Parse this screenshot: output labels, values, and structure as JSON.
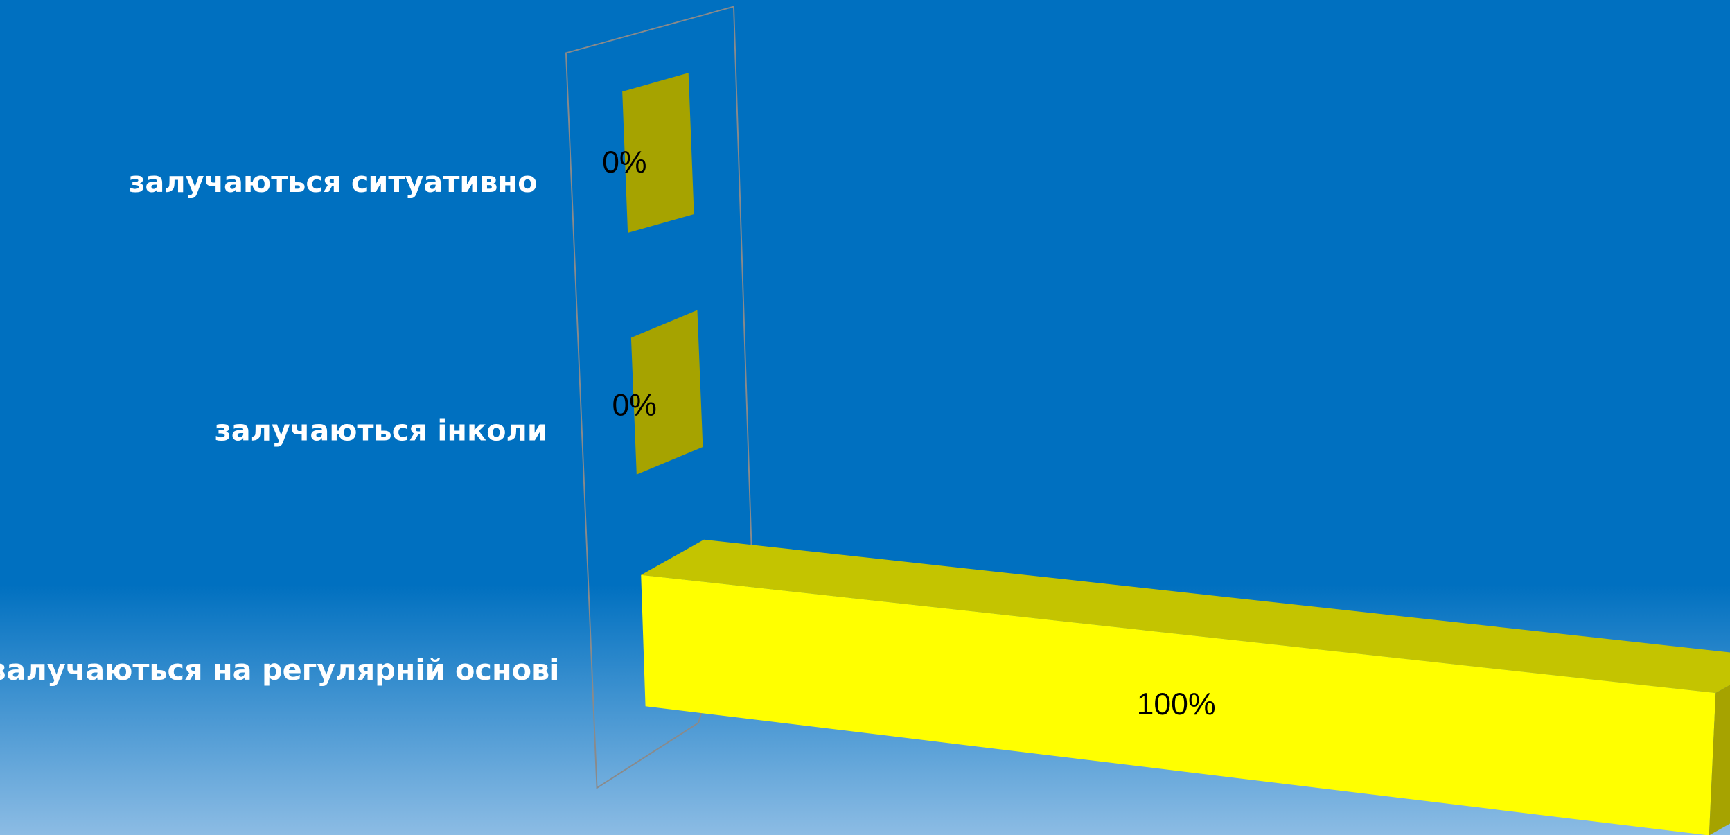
{
  "chart_data": {
    "type": "bar",
    "orientation": "horizontal",
    "categories": [
      "залучаються ситуативно",
      "залучаються інколи",
      "залучаються на регулярній основі"
    ],
    "values": [
      0,
      0,
      100
    ],
    "value_labels": [
      "0%",
      "0%",
      "100%"
    ],
    "color": "#ffff00",
    "xlim": [
      0,
      100
    ]
  }
}
